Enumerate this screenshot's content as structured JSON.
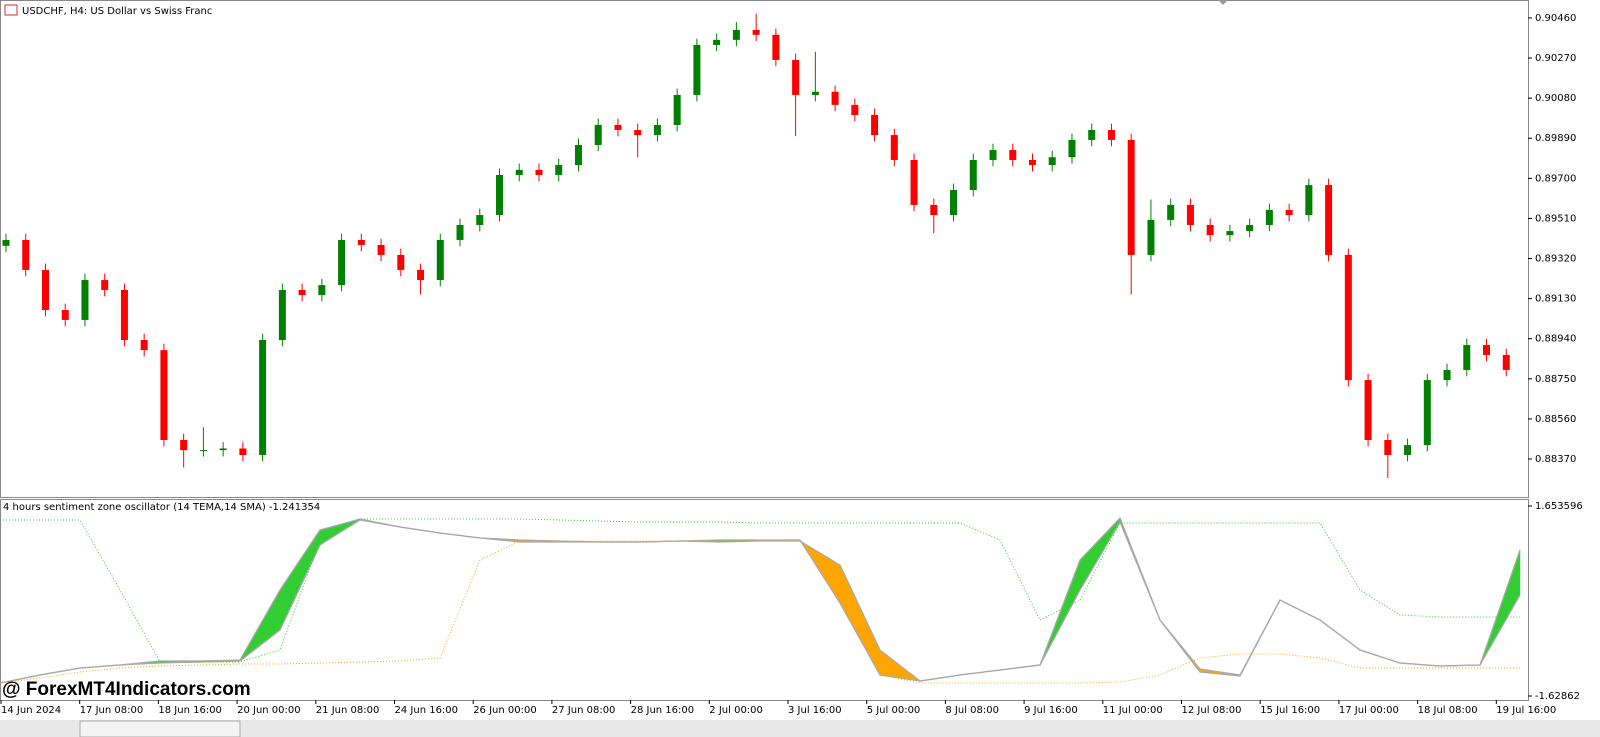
{
  "chart_data": [
    {
      "type": "candlestick",
      "title": "USDCHF, H4:  US Dollar vs Swiss Franc",
      "up_color": "#008000",
      "down_color": "#ff0000",
      "ylim": [
        0.90545,
        0.8819
      ],
      "yticks": [
        {
          "value": 0.9046,
          "label": "0.90460"
        },
        {
          "value": 0.9027,
          "label": "0.90270"
        },
        {
          "value": 0.9008,
          "label": "0.90080"
        },
        {
          "value": 0.8989,
          "label": "0.89890"
        },
        {
          "value": 0.897,
          "label": "0.89700"
        },
        {
          "value": 0.8951,
          "label": "0.89510"
        },
        {
          "value": 0.8932,
          "label": "0.89320"
        },
        {
          "value": 0.8913,
          "label": "0.89130"
        },
        {
          "value": 0.8894,
          "label": "0.88940"
        },
        {
          "value": 0.8875,
          "label": "0.88750"
        },
        {
          "value": 0.8856,
          "label": "0.88560"
        },
        {
          "value": 0.8837,
          "label": "0.88370"
        }
      ],
      "xtick_labels": [
        "14 Jun 2024",
        "17 Jun 08:00",
        "18 Jun 16:00",
        "20 Jun 00:00",
        "21 Jun 08:00",
        "24 Jun 16:00",
        "26 Jun 00:00",
        "27 Jun 08:00",
        "28 Jun 16:00",
        "2 Jul 00:00",
        "3 Jul 16:00",
        "5 Jul 00:00",
        "8 Jul 08:00",
        "9 Jul 16:00",
        "11 Jul 00:00",
        "12 Jul 08:00",
        "15 Jul 16:00",
        "17 Jul 00:00",
        "18 Jul 08:00",
        "19 Jul 16:00"
      ],
      "open": [
        0.8938,
        0.89408,
        0.89266,
        0.89076,
        0.89029,
        0.89218,
        0.89171,
        0.88934,
        0.88886,
        0.8846,
        0.88412,
        0.88412,
        0.8842,
        0.88389,
        0.88934,
        0.89171,
        0.89147,
        0.89194,
        0.89408,
        0.89384,
        0.89337,
        0.89266,
        0.89218,
        0.89408,
        0.89479,
        0.89526,
        0.89716,
        0.8974,
        0.89716,
        0.89763,
        0.89858,
        0.89953,
        0.89929,
        0.89905,
        0.89953,
        0.90095,
        0.90332,
        0.90356,
        0.90403,
        0.9038,
        0.90261,
        0.90095,
        0.9011,
        0.90048,
        0.9,
        0.89905,
        0.89787,
        0.89574,
        0.89526,
        0.89645,
        0.89787,
        0.89834,
        0.89787,
        0.89763,
        0.898,
        0.89882,
        0.89929,
        0.89882,
        0.89337,
        0.89503,
        0.89574,
        0.89479,
        0.89431,
        0.8945,
        0.89479,
        0.8955,
        0.89526,
        0.89668,
        0.89337,
        0.88744,
        0.8846,
        0.88389,
        0.88436,
        0.88744,
        0.88792,
        0.8891,
        0.88863
      ],
      "high": [
        0.89438,
        0.89438,
        0.89296,
        0.89106,
        0.89248,
        0.89248,
        0.89201,
        0.88964,
        0.88916,
        0.8849,
        0.8852,
        0.8845,
        0.8845,
        0.88964,
        0.89201,
        0.89201,
        0.89224,
        0.89438,
        0.89438,
        0.89414,
        0.89367,
        0.89296,
        0.89438,
        0.89509,
        0.89556,
        0.89746,
        0.8977,
        0.8977,
        0.89793,
        0.89888,
        0.89983,
        0.89983,
        0.89959,
        0.89983,
        0.90125,
        0.90362,
        0.90386,
        0.9044,
        0.9048,
        0.9041,
        0.90291,
        0.903,
        0.9014,
        0.90078,
        0.9003,
        0.89935,
        0.89817,
        0.89604,
        0.89675,
        0.89817,
        0.89864,
        0.89864,
        0.89817,
        0.8983,
        0.89912,
        0.89959,
        0.89959,
        0.89912,
        0.896,
        0.89604,
        0.89604,
        0.89509,
        0.8948,
        0.89509,
        0.8958,
        0.8958,
        0.89698,
        0.89698,
        0.89367,
        0.88774,
        0.8849,
        0.88466,
        0.88774,
        0.88822,
        0.8894,
        0.8894,
        0.88893
      ],
      "low": [
        0.8935,
        0.89236,
        0.89046,
        0.88999,
        0.88999,
        0.89141,
        0.88904,
        0.88856,
        0.8843,
        0.8833,
        0.88382,
        0.88382,
        0.88359,
        0.88359,
        0.88904,
        0.89117,
        0.89117,
        0.89164,
        0.89354,
        0.89307,
        0.89236,
        0.8915,
        0.89188,
        0.89378,
        0.89449,
        0.89496,
        0.89686,
        0.89686,
        0.89686,
        0.89733,
        0.89828,
        0.89899,
        0.898,
        0.89875,
        0.89923,
        0.90065,
        0.90302,
        0.90326,
        0.9035,
        0.90231,
        0.899,
        0.90065,
        0.90018,
        0.8997,
        0.89875,
        0.89757,
        0.89544,
        0.8944,
        0.89496,
        0.89615,
        0.89757,
        0.89757,
        0.89733,
        0.89733,
        0.8977,
        0.89852,
        0.89852,
        0.8915,
        0.89307,
        0.89473,
        0.89449,
        0.89401,
        0.89401,
        0.8942,
        0.89449,
        0.89496,
        0.89496,
        0.89307,
        0.88714,
        0.8843,
        0.8828,
        0.88359,
        0.88406,
        0.88714,
        0.88762,
        0.88833,
        0.88762
      ],
      "close": [
        0.89408,
        0.89266,
        0.89076,
        0.89029,
        0.89218,
        0.89171,
        0.88934,
        0.88886,
        0.8846,
        0.88412,
        0.88412,
        0.8842,
        0.88389,
        0.88934,
        0.89171,
        0.89147,
        0.89194,
        0.89408,
        0.89384,
        0.89337,
        0.89266,
        0.89218,
        0.89408,
        0.89479,
        0.89526,
        0.89716,
        0.8974,
        0.89716,
        0.89763,
        0.89858,
        0.89953,
        0.89929,
        0.89905,
        0.89953,
        0.90095,
        0.90332,
        0.90356,
        0.90403,
        0.9038,
        0.90261,
        0.90095,
        0.9011,
        0.90048,
        0.9,
        0.89905,
        0.89787,
        0.89574,
        0.89526,
        0.89645,
        0.89787,
        0.89834,
        0.89787,
        0.89763,
        0.898,
        0.89882,
        0.89929,
        0.89882,
        0.89337,
        0.89503,
        0.89574,
        0.89479,
        0.89431,
        0.8945,
        0.89479,
        0.8955,
        0.89526,
        0.89668,
        0.89337,
        0.88744,
        0.8846,
        0.88389,
        0.88436,
        0.88744,
        0.88792,
        0.8891,
        0.88863,
        0.88792
      ]
    },
    {
      "type": "line",
      "title": "4 hours sentiment zone oscillator (14 TEMA,14 SMA) -1.241354",
      "ylim": [
        1.7572,
        -1.6977
      ],
      "yticks": [
        1.653596,
        -1.62862
      ],
      "fill_up": "#32cd32",
      "fill_down": "#ffa500",
      "series": [
        {
          "color": "#a9a9a9",
          "values": [
            -1.404,
            -1.266,
            -1.145,
            -1.093,
            -1.024,
            -1.024,
            -1.007,
            0.202,
            1.239,
            1.429,
            1.291,
            1.187,
            1.101,
            1.032,
            1.032,
            1.032,
            1.032,
            1.049,
            1.066,
            1.066,
            1.066,
            -0.022,
            -1.266,
            -1.37,
            -1.266,
            -1.18,
            -1.093,
            0.721,
            1.446,
            -0.316,
            -1.214,
            -1.283,
            0.03,
            -0.316,
            -0.834,
            -1.059,
            -1.11,
            -1.093,
            0.893
          ]
        },
        {
          "color": "#a9a9a9",
          "values": [
            -1.404,
            -1.266,
            -1.145,
            -1.093,
            -1.059,
            -1.041,
            -1.024,
            -0.489,
            0.98,
            1.412,
            1.291,
            1.187,
            1.101,
            1.066,
            1.049,
            1.032,
            1.032,
            1.049,
            1.032,
            1.049,
            1.049,
            0.634,
            -0.834,
            -1.37,
            -1.266,
            -1.18,
            -1.093,
            0.202,
            1.377,
            -0.316,
            -1.162,
            -1.266,
            0.03,
            -0.316,
            -0.834,
            -1.059,
            -1.11,
            -1.093,
            0.116
          ]
        },
        {
          "color": "#32cd32",
          "dotted": true,
          "values": [
            1.412,
            1.412,
            1.412,
            0.202,
            -1.041,
            -1.041,
            -1.041,
            -0.834,
            1.066,
            1.429,
            1.429,
            1.429,
            1.429,
            1.429,
            1.412,
            1.394,
            1.377,
            1.377,
            1.377,
            1.36,
            1.36,
            1.36,
            1.36,
            1.36,
            1.36,
            1.066,
            -0.316,
            0.03,
            1.36,
            1.36,
            1.36,
            1.36,
            1.36,
            1.36,
            0.202,
            -0.229,
            -0.264,
            -0.264,
            -0.264
          ]
        },
        {
          "color": "#ffa500",
          "dotted": true,
          "values": [
            -1.404,
            -1.318,
            -1.214,
            -1.145,
            -1.11,
            -1.093,
            -1.076,
            -1.076,
            -1.059,
            -1.041,
            -1.024,
            -0.972,
            0.721,
            1.049,
            1.049,
            1.049,
            1.049,
            1.049,
            1.049,
            1.049,
            1.049,
            0.202,
            -1.266,
            -1.404,
            -1.404,
            -1.404,
            -1.404,
            -1.404,
            -1.387,
            -1.266,
            -0.972,
            -0.903,
            -0.903,
            -0.972,
            -1.145,
            -1.145,
            -1.145,
            -1.145,
            -1.145
          ]
        }
      ]
    }
  ],
  "watermark": "@ ForexMT4Indicators.com"
}
